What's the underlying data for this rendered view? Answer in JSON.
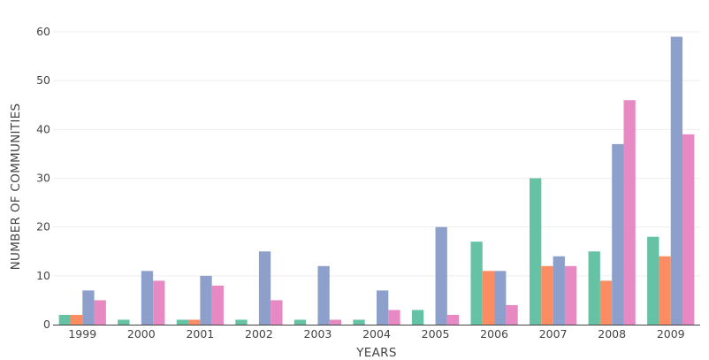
{
  "chart_data": {
    "type": "bar",
    "title": "",
    "xlabel": "YEARS",
    "ylabel": "NUMBER OF COMMUNITIES",
    "categories": [
      "1999",
      "2000",
      "2001",
      "2002",
      "2003",
      "2004",
      "2005",
      "2006",
      "2007",
      "2008",
      "2009"
    ],
    "ylim": [
      0,
      62
    ],
    "yticks": [
      0,
      10,
      20,
      30,
      40,
      50,
      60
    ],
    "grid": true,
    "legend": "none",
    "series": [
      {
        "color": "#66c2a5",
        "values": [
          2,
          1,
          1,
          1,
          1,
          1,
          3,
          17,
          30,
          15,
          18
        ]
      },
      {
        "color": "#fc8d62",
        "values": [
          2,
          0,
          1,
          0,
          0,
          0,
          0,
          11,
          12,
          9,
          14
        ]
      },
      {
        "color": "#8da0cb",
        "values": [
          7,
          11,
          10,
          15,
          12,
          7,
          20,
          11,
          14,
          37,
          59
        ]
      },
      {
        "color": "#e78ac3",
        "values": [
          5,
          9,
          8,
          5,
          1,
          3,
          2,
          4,
          12,
          46,
          39
        ]
      }
    ]
  }
}
